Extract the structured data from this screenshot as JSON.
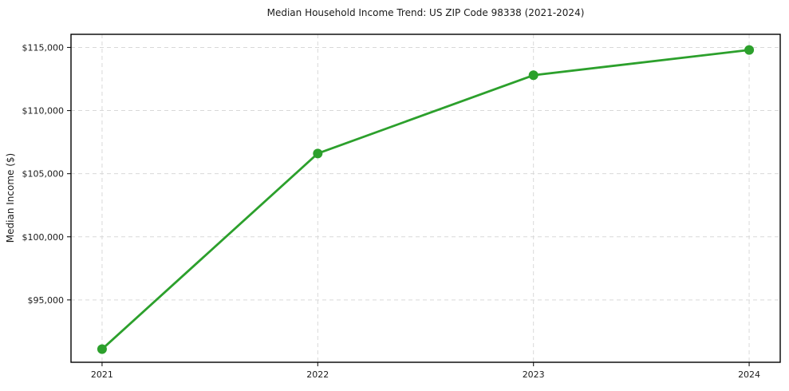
{
  "chart_data": {
    "type": "line",
    "title": "Median Household Income Trend: US ZIP Code 98338 (2021-2024)",
    "xlabel": "",
    "ylabel": "Median Income ($)",
    "x": [
      2021,
      2022,
      2023,
      2024
    ],
    "xtick_labels": [
      "2021",
      "2022",
      "2023",
      "2024"
    ],
    "series": [
      {
        "name": "Median Household Income",
        "values": [
          91100,
          106600,
          112800,
          114800
        ]
      }
    ],
    "yticks": [
      95000,
      100000,
      105000,
      110000,
      115000
    ],
    "ytick_labels": [
      "$95,000",
      "$100,000",
      "$105,000",
      "$110,000",
      "$115,000"
    ],
    "ylim": [
      90060,
      116040
    ],
    "xlim": [
      2020.856,
      2024.144
    ],
    "grid": true,
    "grid_style": "dashed",
    "legend": false,
    "marker": "circle",
    "colors": {
      "line": "#2ca02c",
      "marker": "#2ca02c",
      "grid": "#d9d9d9",
      "frame": "#000000",
      "tick": "#1a1a1a",
      "text": "#1a1a1a",
      "background": "#ffffff"
    }
  }
}
